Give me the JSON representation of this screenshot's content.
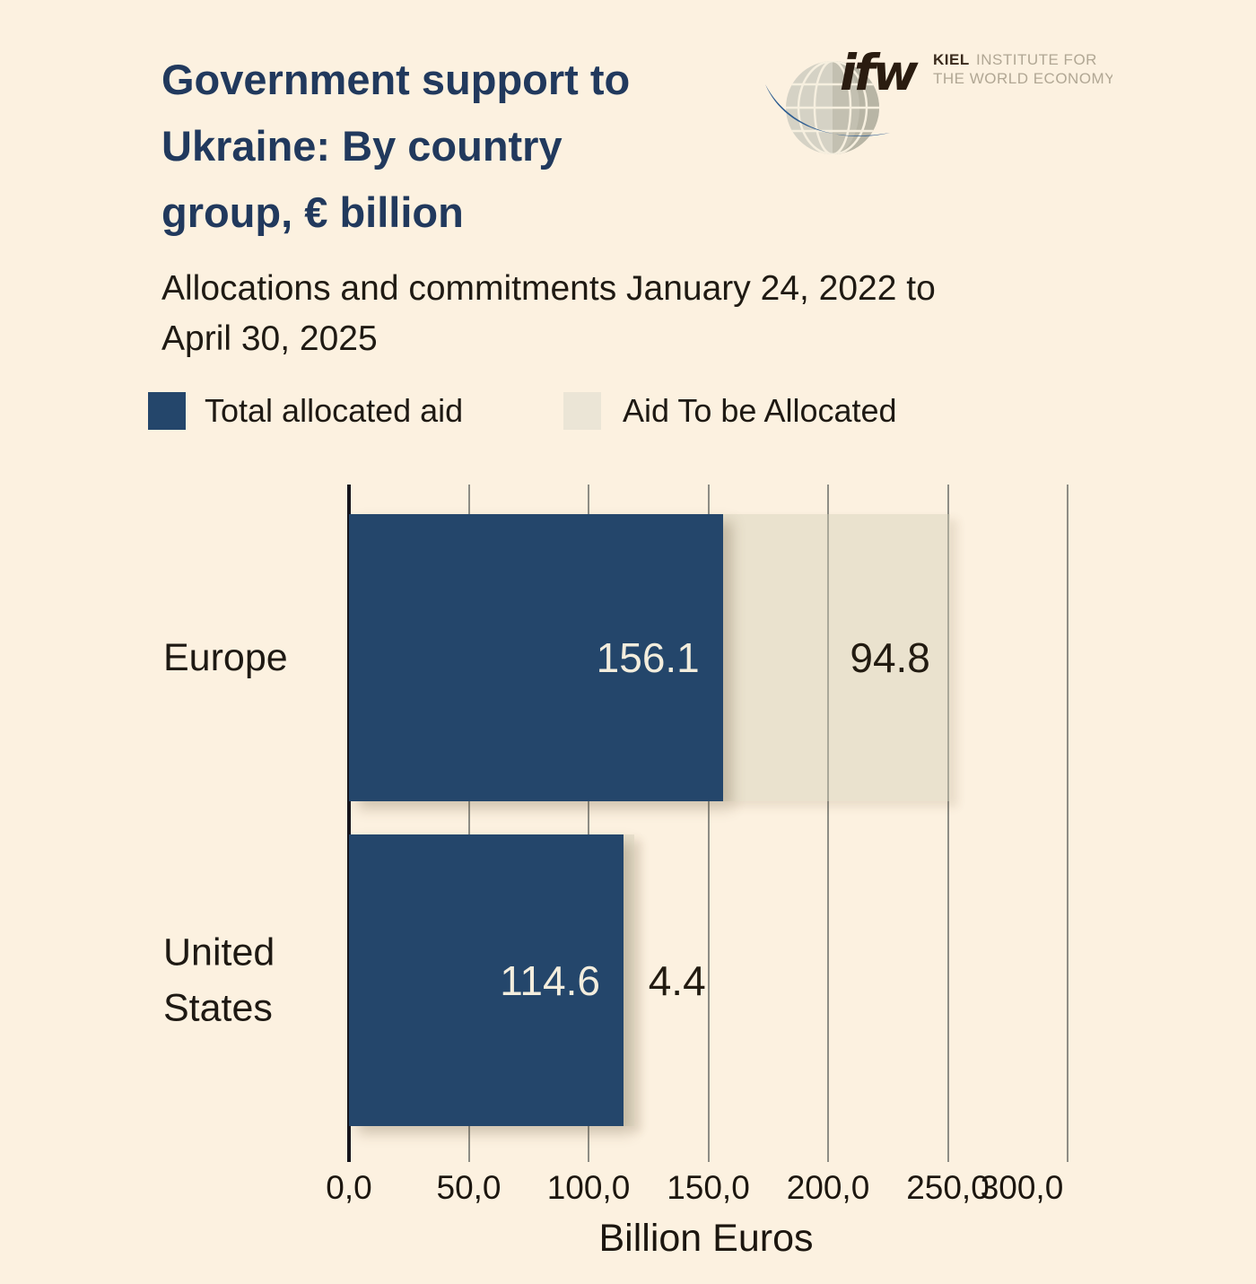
{
  "title": "Government support to\nUkraine: By country\ngroup, € billion",
  "subtitle": "Allocations and commitments January 24, 2022 to\nApril 30, 2025",
  "logo": {
    "short_name": "ifw",
    "org_word": "KIEL",
    "org_line1_rest": "INSTITUTE FOR",
    "org_line2": "THE WORLD ECONOMY"
  },
  "colors": {
    "background": "#fcf1e0",
    "title": "#21395d",
    "allocated_bar": "#24466b",
    "to_be_allocated_bar": "#ece7d8",
    "gridline": "#8e8d85",
    "axis_line": "#16151d",
    "bar_label_light": "#f3eddd",
    "bar_label_dark": "#221b11"
  },
  "legend": [
    {
      "label": "Total allocated aid",
      "swatch": "#24466b"
    },
    {
      "label": "Aid To be Allocated",
      "swatch": "#ebe5d6"
    }
  ],
  "chart_data": {
    "type": "bar",
    "orientation": "horizontal",
    "stacked": true,
    "title": "Government support to Ukraine: By country group, € billion",
    "subtitle": "Allocations and commitments January 24, 2022 to April 30, 2025",
    "categories": [
      "Europe",
      "United States"
    ],
    "series": [
      {
        "name": "Total allocated aid",
        "values": [
          156.1,
          114.6
        ],
        "labels": [
          "156.1",
          "114.6"
        ],
        "color": "#24466b",
        "label_color": "#f3eddd"
      },
      {
        "name": "Aid To be Allocated",
        "values": [
          94.8,
          4.4
        ],
        "labels": [
          "94.8",
          "4.4"
        ],
        "color": "rgba(210,205,180,0.42)",
        "label_color": "#221b11"
      }
    ],
    "xlabel": "Billion Euros",
    "xlim": [
      0,
      300
    ],
    "xtick_values": [
      0,
      50,
      100,
      150,
      200,
      250,
      300
    ],
    "xtick_labels": [
      "0,0",
      "50,0",
      "100,0",
      "150,0",
      "200,0",
      "250,0",
      "300,0"
    ],
    "grid": "vertical",
    "legend_position": "top"
  }
}
